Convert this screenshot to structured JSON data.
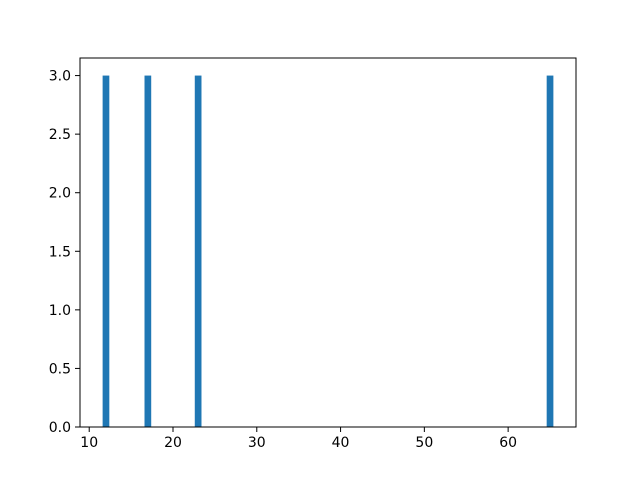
{
  "chart_data": {
    "type": "bar",
    "title": "",
    "xlabel": "",
    "ylabel": "",
    "x": [
      12,
      17,
      23,
      65
    ],
    "values": [
      3,
      3,
      3,
      3
    ],
    "bar_width": 0.8,
    "bar_color": "#1f77b4",
    "xlim": [
      8.9,
      68.1
    ],
    "ylim": [
      0,
      3.15
    ],
    "xticks": [
      10,
      20,
      30,
      40,
      50,
      60
    ],
    "xtick_labels": [
      "10",
      "20",
      "30",
      "40",
      "50",
      "60"
    ],
    "yticks": [
      0.0,
      0.5,
      1.0,
      1.5,
      2.0,
      2.5,
      3.0
    ],
    "ytick_labels": [
      "0.0",
      "0.5",
      "1.0",
      "1.5",
      "2.0",
      "2.5",
      "3.0"
    ],
    "grid": false,
    "legend": null,
    "spine_color": "#000000",
    "background_color": "#ffffff"
  }
}
